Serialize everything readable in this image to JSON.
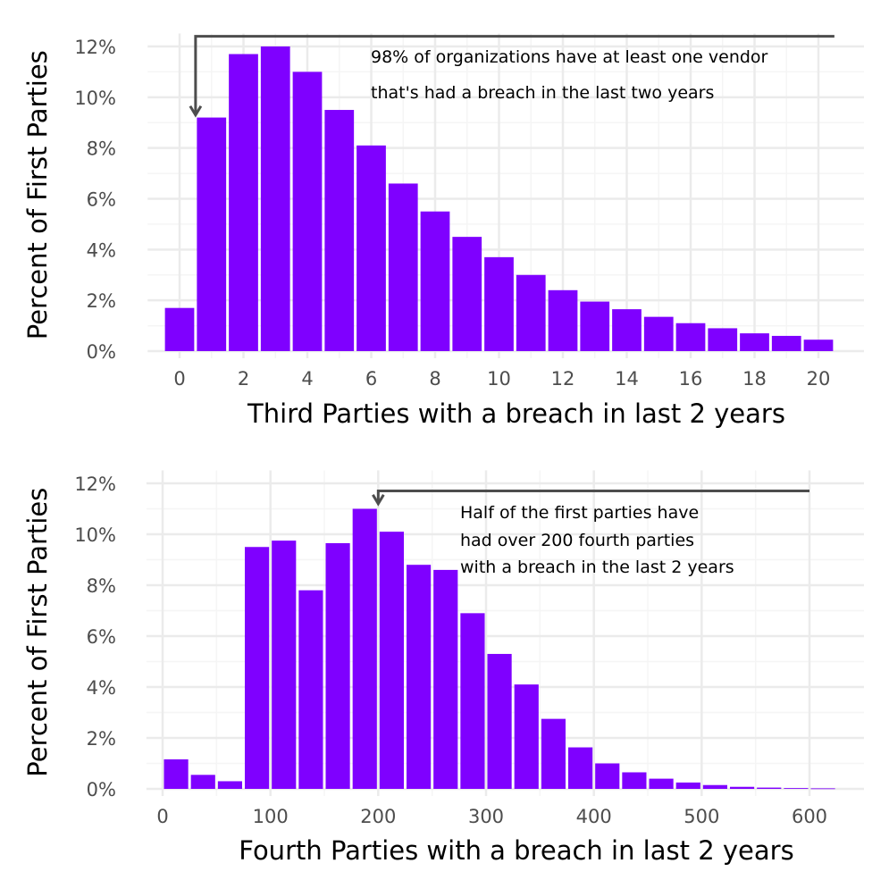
{
  "colors": {
    "bar": "#7f00ff",
    "annotation": "#4d4d4d",
    "grid_major": "#ebebeb",
    "grid_minor": "#f5f5f5"
  },
  "chart_data": [
    {
      "type": "bar",
      "title": "",
      "xlabel": "Third Parties with a breach in last 2 years",
      "ylabel": "Percent of First Parties",
      "xlim": [
        -1,
        20.5
      ],
      "ylim": [
        0,
        12.3
      ],
      "x_ticks": [
        0,
        2,
        4,
        6,
        8,
        10,
        12,
        14,
        16,
        18,
        20
      ],
      "x_tick_labels": [
        "0",
        "2",
        "4",
        "6",
        "8",
        "10",
        "12",
        "14",
        "16",
        "18",
        "20"
      ],
      "y_ticks": [
        0,
        2,
        4,
        6,
        8,
        10,
        12
      ],
      "y_tick_labels": [
        "0%",
        "2%",
        "4%",
        "6%",
        "8%",
        "10%",
        "12%"
      ],
      "bin_width": 1,
      "x": [
        0,
        1,
        2,
        3,
        4,
        5,
        6,
        7,
        8,
        9,
        10,
        11,
        12,
        13,
        14,
        15,
        16,
        17,
        18,
        19,
        20
      ],
      "values": [
        1.7,
        9.2,
        11.7,
        12.0,
        11.0,
        9.5,
        8.1,
        6.6,
        5.5,
        4.5,
        3.7,
        3.0,
        2.4,
        1.95,
        1.65,
        1.35,
        1.1,
        0.9,
        0.7,
        0.6,
        0.45
      ],
      "grid": true,
      "annotation": {
        "lines": [
          "98% of organizations have at least one vendor",
          "that's had a breach in the last two years"
        ],
        "arrow_to_x": 0.5,
        "arrow_from_x_end": 20.5,
        "arrow_tip_y": 9.3,
        "arrow_top_y": 12.4
      }
    },
    {
      "type": "bar",
      "title": "",
      "xlabel": "Fourth Parties with a breach in last 2 years",
      "ylabel": "Percent of First Parties",
      "xlim": [
        -15,
        635
      ],
      "ylim": [
        0,
        12.3
      ],
      "x_ticks": [
        0,
        100,
        200,
        300,
        400,
        500,
        600
      ],
      "x_tick_labels": [
        "0",
        "100",
        "200",
        "300",
        "400",
        "500",
        "600"
      ],
      "y_ticks": [
        0,
        2,
        4,
        6,
        8,
        10,
        12
      ],
      "y_tick_labels": [
        "0%",
        "2%",
        "4%",
        "6%",
        "8%",
        "10%",
        "12%"
      ],
      "bin_width": 25,
      "x": [
        12.5,
        37.5,
        62.5,
        87.5,
        112.5,
        137.5,
        162.5,
        187.5,
        212.5,
        237.5,
        262.5,
        287.5,
        312.5,
        337.5,
        362.5,
        387.5,
        412.5,
        437.5,
        462.5,
        487.5,
        512.5,
        537.5,
        562.5,
        587.5,
        612.5
      ],
      "values": [
        1.16,
        0.55,
        0.3,
        9.5,
        9.75,
        7.8,
        9.65,
        11.0,
        10.1,
        8.8,
        8.6,
        6.9,
        5.3,
        4.1,
        2.75,
        1.63,
        1.0,
        0.65,
        0.4,
        0.25,
        0.15,
        0.08,
        0.05,
        0.03,
        0.02
      ],
      "grid": true,
      "annotation": {
        "lines": [
          "Half of the first parties have",
          "had over 200 fourth parties",
          "with a breach in the last 2 years"
        ],
        "arrow_to_x": 200,
        "arrow_from_x_end": 600,
        "arrow_tip_y": 11.2,
        "arrow_top_y": 11.7
      }
    }
  ]
}
